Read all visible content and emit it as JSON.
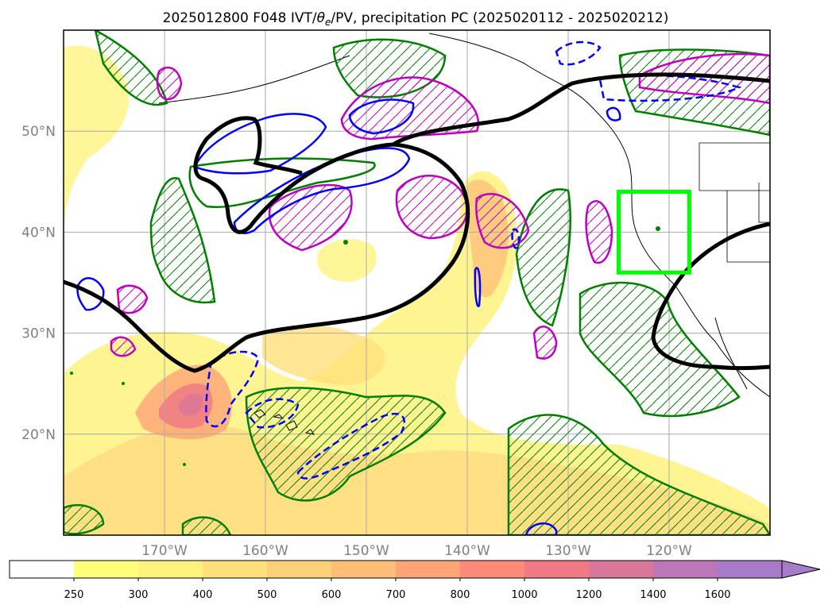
{
  "chart_data": {
    "type": "heatmap",
    "title": "2025012800 F048 IVT/θe/PV, precipitation PC (2025020112 - 2025020212)",
    "title_parts": {
      "pre": "2025012800 F048 IVT/",
      "theta": "θ",
      "sub": "e",
      "post": "/PV, precipitation PC (2025020112 - 2025020212)"
    },
    "map": {
      "lon_range": [
        -180,
        -110
      ],
      "lat_range": [
        10,
        60
      ],
      "lon_ticks": [
        {
          "value": -170,
          "label": "170°W"
        },
        {
          "value": -160,
          "label": "160°W"
        },
        {
          "value": -150,
          "label": "150°W"
        },
        {
          "value": -140,
          "label": "140°W"
        },
        {
          "value": -130,
          "label": "130°W"
        },
        {
          "value": -120,
          "label": "120°W"
        }
      ],
      "lat_ticks": [
        {
          "value": 20,
          "label": "20°N"
        },
        {
          "value": 30,
          "label": "30°N"
        },
        {
          "value": 40,
          "label": "40°N"
        },
        {
          "value": 50,
          "label": "50°N"
        }
      ],
      "grid": true,
      "highlight_box": {
        "lon": [
          -125,
          -118
        ],
        "lat": [
          36,
          44
        ],
        "color": "#00ff00"
      }
    },
    "colorbar": {
      "levels": [
        250,
        300,
        400,
        500,
        600,
        700,
        800,
        1000,
        1200,
        1400,
        1600
      ],
      "labels": [
        "250",
        "300",
        "400",
        "500",
        "600",
        "700",
        "800",
        "1000",
        "1200",
        "1400",
        "1600"
      ],
      "colors": [
        "#ffffff",
        "#ffff7a",
        "#fff27f",
        "#ffe07b",
        "#ffd07a",
        "#ffbd78",
        "#ffa477",
        "#ff8a7a",
        "#ef7a85",
        "#d9779a",
        "#bd76b7",
        "#a67bc9"
      ],
      "extend": "max"
    },
    "contour_colors": {
      "theta_e": "#000000",
      "pv": "#008000",
      "precip_pos": "#c000c0",
      "precip_neg": "#0000ff"
    }
  }
}
